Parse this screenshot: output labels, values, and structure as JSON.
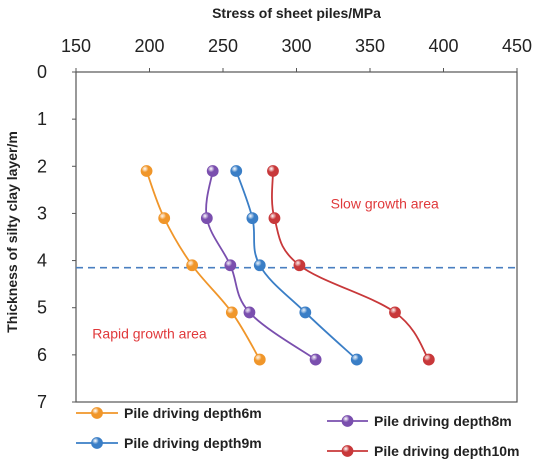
{
  "chart_data": {
    "type": "line",
    "title": "",
    "xlabel": "Stress of sheet piles/MPa",
    "ylabel": "Thickness of silty clay layer/m",
    "x_axis_position": "top",
    "y_axis_inverted": true,
    "xlim": [
      150,
      450
    ],
    "ylim": [
      0,
      7
    ],
    "x_ticks": [
      150,
      200,
      250,
      300,
      350,
      400,
      450
    ],
    "y_ticks": [
      0,
      1,
      2,
      3,
      4,
      5,
      6,
      7
    ],
    "grid": false,
    "legend_position": "bottom",
    "series": [
      {
        "name": "Pile driving depth6m",
        "color": "#f0962a",
        "points": [
          {
            "x": 198,
            "y": 2.1
          },
          {
            "x": 210,
            "y": 3.1
          },
          {
            "x": 229,
            "y": 4.1
          },
          {
            "x": 256,
            "y": 5.1
          },
          {
            "x": 275,
            "y": 6.1
          }
        ]
      },
      {
        "name": "Pile driving depth8m",
        "color": "#7a4fae",
        "points": [
          {
            "x": 243,
            "y": 2.1
          },
          {
            "x": 239,
            "y": 3.1
          },
          {
            "x": 255,
            "y": 4.1
          },
          {
            "x": 268,
            "y": 5.1
          },
          {
            "x": 313,
            "y": 6.1
          }
        ]
      },
      {
        "name": "Pile driving depth9m",
        "color": "#3a7ec6",
        "points": [
          {
            "x": 259,
            "y": 2.1
          },
          {
            "x": 270,
            "y": 3.1
          },
          {
            "x": 275,
            "y": 4.1
          },
          {
            "x": 306,
            "y": 5.1
          },
          {
            "x": 341,
            "y": 6.1
          }
        ]
      },
      {
        "name": "Pile driving depth10m",
        "color": "#c8383a",
        "points": [
          {
            "x": 284,
            "y": 2.1
          },
          {
            "x": 285,
            "y": 3.1
          },
          {
            "x": 302,
            "y": 4.1
          },
          {
            "x": 367,
            "y": 5.1
          },
          {
            "x": 390,
            "y": 6.1
          }
        ]
      }
    ],
    "reference_line": {
      "y": 4.15,
      "color": "#4a7fc0",
      "style": "dashed"
    },
    "annotations": [
      {
        "text": "Slow growth area",
        "x": 360,
        "y": 2.9,
        "color": "#e0393b"
      },
      {
        "text": "Rapid growth area",
        "x": 200,
        "y": 5.65,
        "color": "#e0393b"
      }
    ]
  }
}
